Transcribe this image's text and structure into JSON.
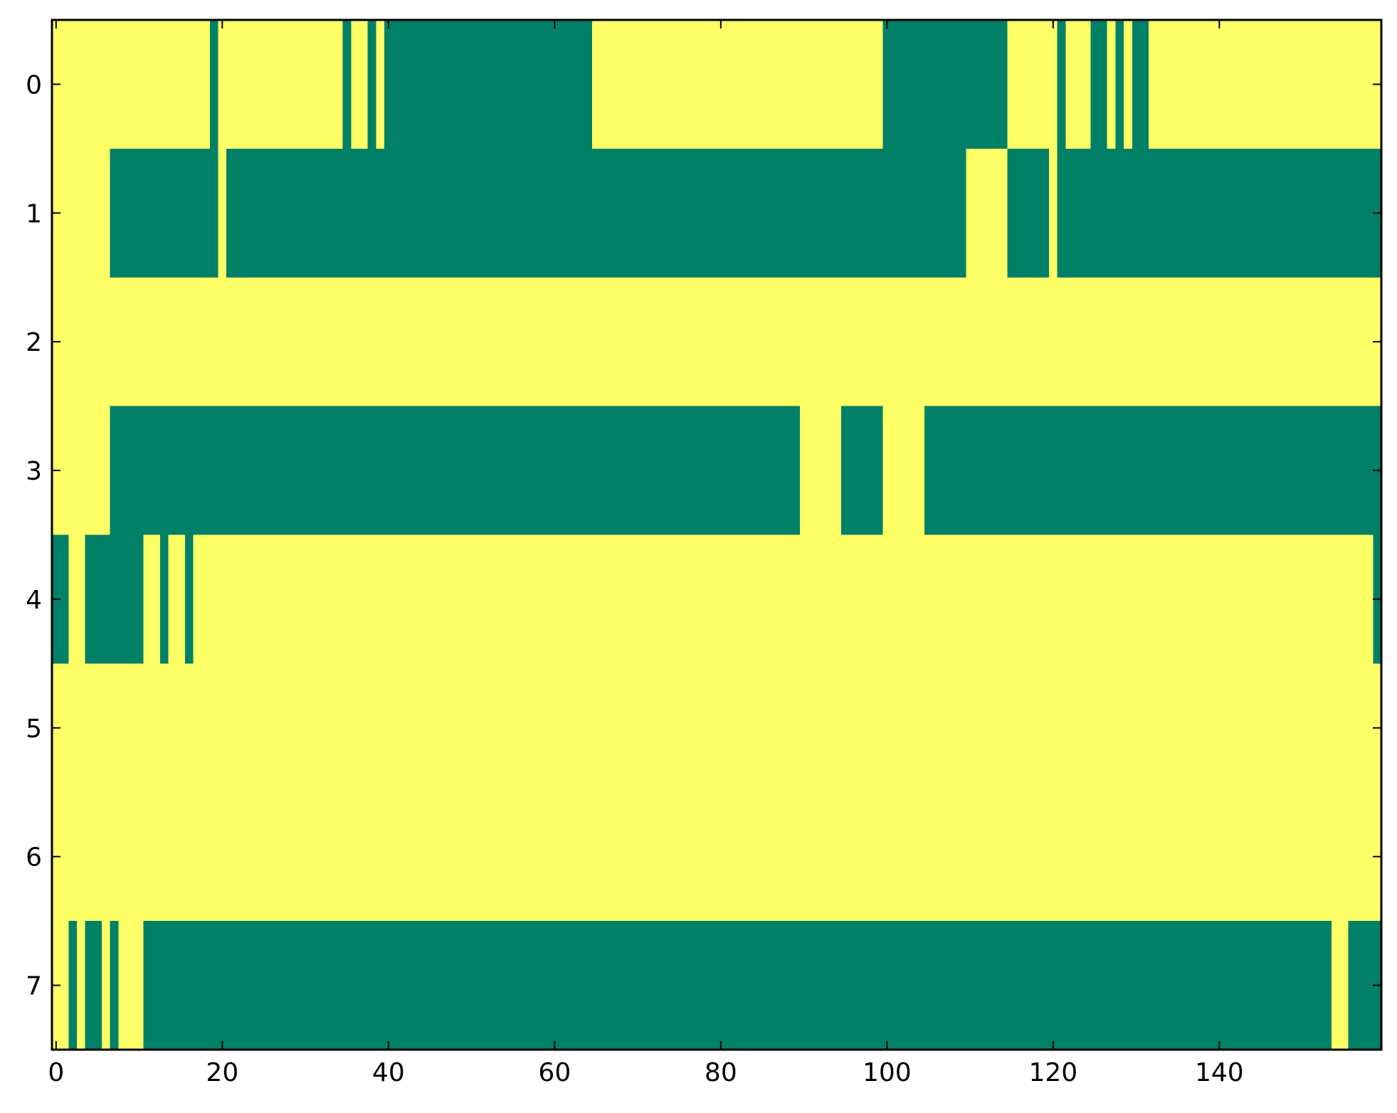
{
  "chart_data": {
    "type": "heatmap",
    "xlim": [
      -0.5,
      159.5
    ],
    "ylim": [
      7.5,
      -0.5
    ],
    "xticks": [
      0,
      20,
      40,
      60,
      80,
      100,
      120,
      140
    ],
    "yticks": [
      0,
      1,
      2,
      3,
      4,
      5,
      6,
      7
    ],
    "colors": [
      "#008066",
      "#ffff66"
    ],
    "clim": [
      0,
      1
    ],
    "values": [
      [
        1,
        1,
        1,
        1,
        1,
        1,
        1,
        1,
        1,
        1,
        1,
        1,
        1,
        1,
        1,
        1,
        1,
        1,
        1,
        0,
        1,
        1,
        1,
        1,
        1,
        1,
        1,
        1,
        1,
        1,
        1,
        1,
        1,
        1,
        1,
        0,
        1,
        1,
        0,
        1,
        0,
        0,
        0,
        0,
        0,
        0,
        0,
        0,
        0,
        0,
        0,
        0,
        0,
        0,
        0,
        0,
        0,
        0,
        0,
        0,
        0,
        0,
        0,
        0,
        0,
        1,
        1,
        1,
        1,
        1,
        1,
        1,
        1,
        1,
        1,
        1,
        1,
        1,
        1,
        1,
        1,
        1,
        1,
        1,
        1,
        1,
        1,
        1,
        1,
        1,
        1,
        1,
        1,
        1,
        1,
        1,
        1,
        1,
        1,
        1,
        0,
        0,
        0,
        0,
        0,
        0,
        0,
        0,
        0,
        0,
        0,
        0,
        0,
        0,
        0,
        1,
        1,
        1,
        1,
        1,
        1,
        0,
        1,
        1,
        1,
        0,
        0,
        1,
        0,
        1,
        0,
        0,
        1,
        1,
        1,
        1,
        1,
        1,
        1,
        1,
        1,
        1,
        1,
        1,
        1,
        1,
        1,
        1,
        1,
        1,
        1,
        1,
        1,
        1,
        1,
        1,
        1,
        1,
        1,
        1
      ],
      [
        1,
        1,
        1,
        1,
        1,
        1,
        1,
        0,
        0,
        0,
        0,
        0,
        0,
        0,
        0,
        0,
        0,
        0,
        0,
        0,
        1,
        0,
        0,
        0,
        0,
        0,
        0,
        0,
        0,
        0,
        0,
        0,
        0,
        0,
        0,
        0,
        0,
        0,
        0,
        0,
        0,
        0,
        0,
        0,
        0,
        0,
        0,
        0,
        0,
        0,
        0,
        0,
        0,
        0,
        0,
        0,
        0,
        0,
        0,
        0,
        0,
        0,
        0,
        0,
        0,
        0,
        0,
        0,
        0,
        0,
        0,
        0,
        0,
        0,
        0,
        0,
        0,
        0,
        0,
        0,
        0,
        0,
        0,
        0,
        0,
        0,
        0,
        0,
        0,
        0,
        0,
        0,
        0,
        0,
        0,
        0,
        0,
        0,
        0,
        0,
        0,
        0,
        0,
        0,
        0,
        0,
        0,
        0,
        0,
        0,
        1,
        1,
        1,
        1,
        1,
        0,
        0,
        0,
        0,
        0,
        1,
        0,
        0,
        0,
        0,
        0,
        0,
        0,
        0,
        0,
        0,
        0,
        0,
        0,
        0,
        0,
        0,
        0,
        0,
        0,
        0,
        0,
        0,
        0,
        0,
        0,
        0,
        0,
        0,
        0,
        0,
        0,
        0,
        0,
        0,
        0,
        0,
        0,
        0,
        0
      ],
      [
        1,
        1,
        1,
        1,
        1,
        1,
        1,
        1,
        1,
        1,
        1,
        1,
        1,
        1,
        1,
        1,
        1,
        1,
        1,
        1,
        1,
        1,
        1,
        1,
        1,
        1,
        1,
        1,
        1,
        1,
        1,
        1,
        1,
        1,
        1,
        1,
        1,
        1,
        1,
        1,
        1,
        1,
        1,
        1,
        1,
        1,
        1,
        1,
        1,
        1,
        1,
        1,
        1,
        1,
        1,
        1,
        1,
        1,
        1,
        1,
        1,
        1,
        1,
        1,
        1,
        1,
        1,
        1,
        1,
        1,
        1,
        1,
        1,
        1,
        1,
        1,
        1,
        1,
        1,
        1,
        1,
        1,
        1,
        1,
        1,
        1,
        1,
        1,
        1,
        1,
        1,
        1,
        1,
        1,
        1,
        1,
        1,
        1,
        1,
        1,
        1,
        1,
        1,
        1,
        1,
        1,
        1,
        1,
        1,
        1,
        1,
        1,
        1,
        1,
        1,
        1,
        1,
        1,
        1,
        1,
        1,
        1,
        1,
        1,
        1,
        1,
        1,
        1,
        1,
        1,
        1,
        1,
        1,
        1,
        1,
        1,
        1,
        1,
        1,
        1,
        1,
        1,
        1,
        1,
        1,
        1,
        1,
        1,
        1,
        1,
        1,
        1,
        1,
        1,
        1,
        1,
        1,
        1,
        1,
        1
      ],
      [
        1,
        1,
        1,
        1,
        1,
        1,
        1,
        0,
        0,
        0,
        0,
        0,
        0,
        0,
        0,
        0,
        0,
        0,
        0,
        0,
        0,
        0,
        0,
        0,
        0,
        0,
        0,
        0,
        0,
        0,
        0,
        0,
        0,
        0,
        0,
        0,
        0,
        0,
        0,
        0,
        0,
        0,
        0,
        0,
        0,
        0,
        0,
        0,
        0,
        0,
        0,
        0,
        0,
        0,
        0,
        0,
        0,
        0,
        0,
        0,
        0,
        0,
        0,
        0,
        0,
        0,
        0,
        0,
        0,
        0,
        0,
        0,
        0,
        0,
        0,
        0,
        0,
        0,
        0,
        0,
        0,
        0,
        0,
        0,
        0,
        0,
        0,
        0,
        0,
        0,
        1,
        1,
        1,
        1,
        1,
        0,
        0,
        0,
        0,
        0,
        1,
        1,
        1,
        1,
        1,
        0,
        0,
        0,
        0,
        0,
        0,
        0,
        0,
        0,
        0,
        0,
        0,
        0,
        0,
        0,
        0,
        0,
        0,
        0,
        0,
        0,
        0,
        0,
        0,
        0,
        0,
        0,
        0,
        0,
        0,
        0,
        0,
        0,
        0,
        0,
        0,
        0,
        0,
        0,
        0,
        0,
        0,
        0,
        0,
        0,
        0,
        0,
        0,
        0,
        0,
        0,
        0,
        0,
        0,
        0
      ],
      [
        0,
        0,
        1,
        1,
        0,
        0,
        0,
        0,
        0,
        0,
        0,
        1,
        1,
        0,
        1,
        1,
        0,
        1,
        1,
        1,
        1,
        1,
        1,
        1,
        1,
        1,
        1,
        1,
        1,
        1,
        1,
        1,
        1,
        1,
        1,
        1,
        1,
        1,
        1,
        1,
        1,
        1,
        1,
        1,
        1,
        1,
        1,
        1,
        1,
        1,
        1,
        1,
        1,
        1,
        1,
        1,
        1,
        1,
        1,
        1,
        1,
        1,
        1,
        1,
        1,
        1,
        1,
        1,
        1,
        1,
        1,
        1,
        1,
        1,
        1,
        1,
        1,
        1,
        1,
        1,
        1,
        1,
        1,
        1,
        1,
        1,
        1,
        1,
        1,
        1,
        1,
        1,
        1,
        1,
        1,
        1,
        1,
        1,
        1,
        1,
        1,
        1,
        1,
        1,
        1,
        1,
        1,
        1,
        1,
        1,
        1,
        1,
        1,
        1,
        1,
        1,
        1,
        1,
        1,
        1,
        1,
        1,
        1,
        1,
        1,
        1,
        1,
        1,
        1,
        1,
        1,
        1,
        1,
        1,
        1,
        1,
        1,
        1,
        1,
        1,
        1,
        1,
        1,
        1,
        1,
        1,
        1,
        1,
        1,
        1,
        1,
        1,
        1,
        1,
        1,
        1,
        1,
        1,
        1,
        0
      ],
      [
        1,
        1,
        1,
        1,
        1,
        1,
        1,
        1,
        1,
        1,
        1,
        1,
        1,
        1,
        1,
        1,
        1,
        1,
        1,
        1,
        1,
        1,
        1,
        1,
        1,
        1,
        1,
        1,
        1,
        1,
        1,
        1,
        1,
        1,
        1,
        1,
        1,
        1,
        1,
        1,
        1,
        1,
        1,
        1,
        1,
        1,
        1,
        1,
        1,
        1,
        1,
        1,
        1,
        1,
        1,
        1,
        1,
        1,
        1,
        1,
        1,
        1,
        1,
        1,
        1,
        1,
        1,
        1,
        1,
        1,
        1,
        1,
        1,
        1,
        1,
        1,
        1,
        1,
        1,
        1,
        1,
        1,
        1,
        1,
        1,
        1,
        1,
        1,
        1,
        1,
        1,
        1,
        1,
        1,
        1,
        1,
        1,
        1,
        1,
        1,
        1,
        1,
        1,
        1,
        1,
        1,
        1,
        1,
        1,
        1,
        1,
        1,
        1,
        1,
        1,
        1,
        1,
        1,
        1,
        1,
        1,
        1,
        1,
        1,
        1,
        1,
        1,
        1,
        1,
        1,
        1,
        1,
        1,
        1,
        1,
        1,
        1,
        1,
        1,
        1,
        1,
        1,
        1,
        1,
        1,
        1,
        1,
        1,
        1,
        1,
        1,
        1,
        1,
        1,
        1,
        1,
        1,
        1,
        1,
        1
      ],
      [
        1,
        1,
        1,
        1,
        1,
        1,
        1,
        1,
        1,
        1,
        1,
        1,
        1,
        1,
        1,
        1,
        1,
        1,
        1,
        1,
        1,
        1,
        1,
        1,
        1,
        1,
        1,
        1,
        1,
        1,
        1,
        1,
        1,
        1,
        1,
        1,
        1,
        1,
        1,
        1,
        1,
        1,
        1,
        1,
        1,
        1,
        1,
        1,
        1,
        1,
        1,
        1,
        1,
        1,
        1,
        1,
        1,
        1,
        1,
        1,
        1,
        1,
        1,
        1,
        1,
        1,
        1,
        1,
        1,
        1,
        1,
        1,
        1,
        1,
        1,
        1,
        1,
        1,
        1,
        1,
        1,
        1,
        1,
        1,
        1,
        1,
        1,
        1,
        1,
        1,
        1,
        1,
        1,
        1,
        1,
        1,
        1,
        1,
        1,
        1,
        1,
        1,
        1,
        1,
        1,
        1,
        1,
        1,
        1,
        1,
        1,
        1,
        1,
        1,
        1,
        1,
        1,
        1,
        1,
        1,
        1,
        1,
        1,
        1,
        1,
        1,
        1,
        1,
        1,
        1,
        1,
        1,
        1,
        1,
        1,
        1,
        1,
        1,
        1,
        1,
        1,
        1,
        1,
        1,
        1,
        1,
        1,
        1,
        1,
        1,
        1,
        1,
        1,
        1,
        1,
        1,
        1,
        1,
        1,
        1
      ],
      [
        1,
        1,
        0,
        1,
        0,
        0,
        1,
        0,
        1,
        1,
        1,
        0,
        0,
        0,
        0,
        0,
        0,
        0,
        0,
        0,
        0,
        0,
        0,
        0,
        0,
        0,
        0,
        0,
        0,
        0,
        0,
        0,
        0,
        0,
        0,
        0,
        0,
        0,
        0,
        0,
        0,
        0,
        0,
        0,
        0,
        0,
        0,
        0,
        0,
        0,
        0,
        0,
        0,
        0,
        0,
        0,
        0,
        0,
        0,
        0,
        0,
        0,
        0,
        0,
        0,
        0,
        0,
        0,
        0,
        0,
        0,
        0,
        0,
        0,
        0,
        0,
        0,
        0,
        0,
        0,
        0,
        0,
        0,
        0,
        0,
        0,
        0,
        0,
        0,
        0,
        0,
        0,
        0,
        0,
        0,
        0,
        0,
        0,
        0,
        0,
        0,
        0,
        0,
        0,
        0,
        0,
        0,
        0,
        0,
        0,
        0,
        0,
        0,
        0,
        0,
        0,
        0,
        0,
        0,
        0,
        0,
        0,
        0,
        0,
        0,
        0,
        0,
        0,
        0,
        0,
        0,
        0,
        0,
        0,
        0,
        0,
        0,
        0,
        0,
        0,
        0,
        0,
        0,
        0,
        0,
        0,
        0,
        0,
        0,
        0,
        0,
        0,
        0,
        0,
        1,
        1,
        0,
        0,
        0,
        0
      ]
    ]
  }
}
